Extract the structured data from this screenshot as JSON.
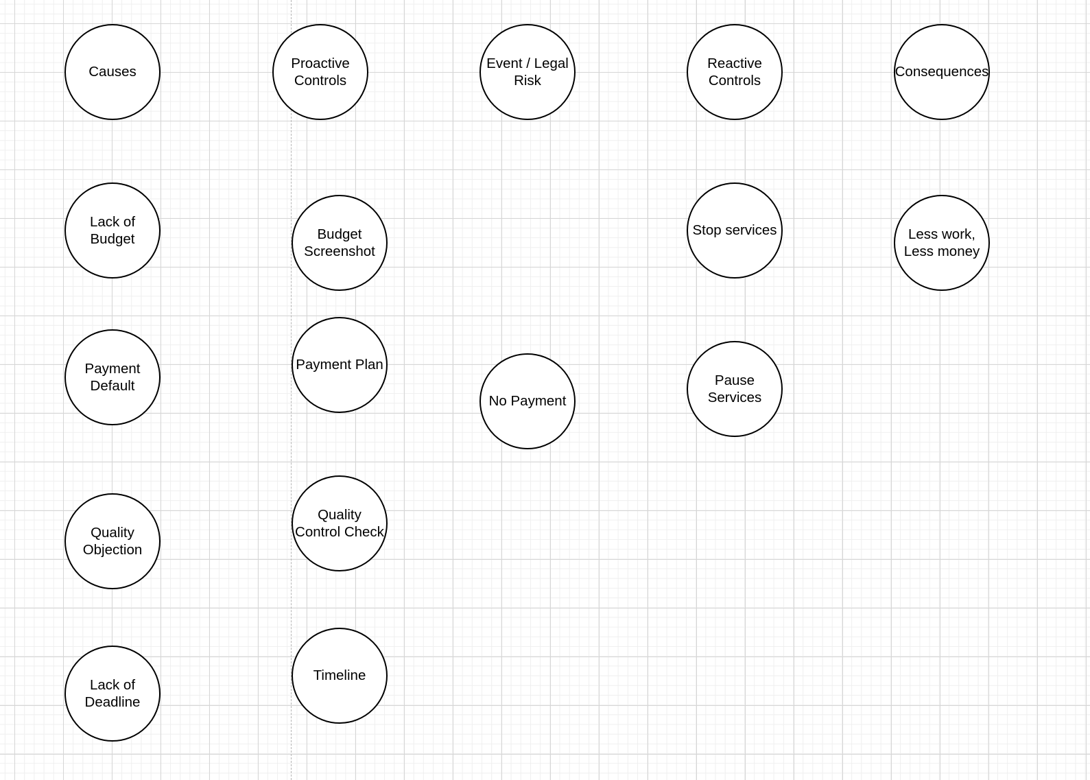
{
  "diagram": {
    "nodes": {
      "causes": "Causes",
      "proactive_controls": "Proactive\nControls",
      "event_legal_risk": "Event / Legal\nRisk",
      "reactive_controls": "Reactive\nControls",
      "consequences": "Consequences",
      "lack_of_budget": "Lack of\nBudget",
      "budget_screenshot": "Budget\nScreenshot",
      "stop_services": "Stop services",
      "less_work_less_money": "Less work,\nLess money",
      "payment_default": "Payment\nDefault",
      "payment_plan": "Payment Plan",
      "no_payment": "No Payment",
      "pause_services": "Pause\nServices",
      "quality_objection": "Quality\nObjection",
      "quality_control_check": "Quality\nControl Check",
      "lack_of_deadline": "Lack of\nDeadline",
      "timeline": "Timeline"
    }
  }
}
